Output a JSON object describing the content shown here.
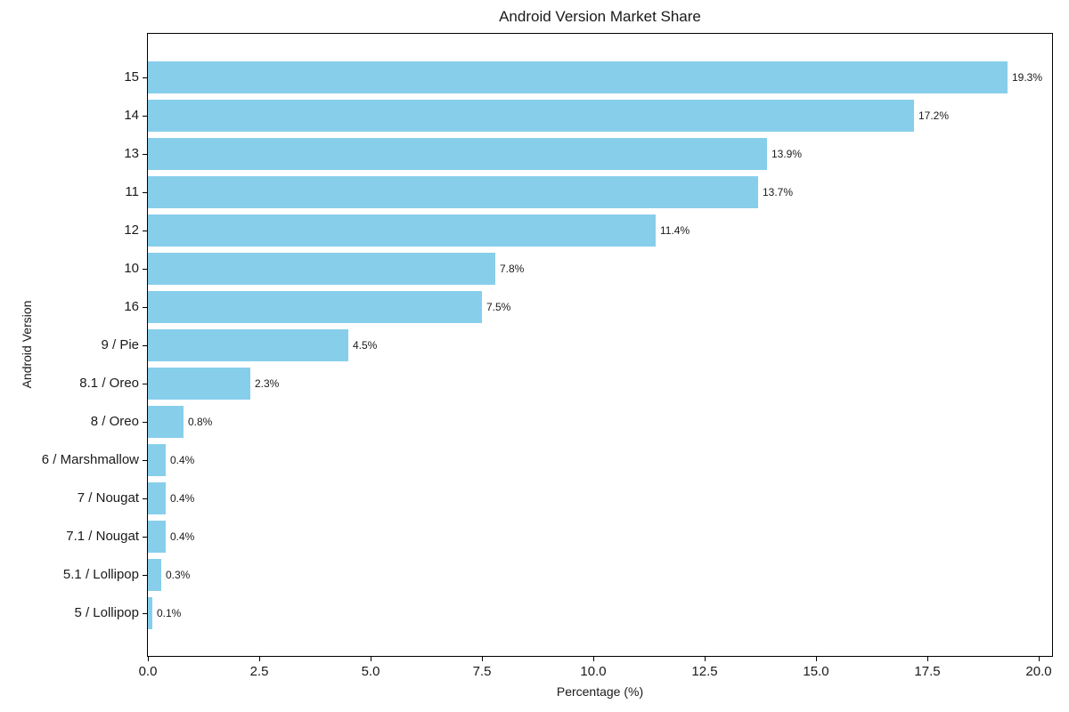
{
  "colors": {
    "bar": "#87CEEB",
    "spine": "#000000",
    "text": "#1a1a1a",
    "background": "#ffffff"
  },
  "chart_data": {
    "type": "bar",
    "orientation": "horizontal",
    "title": "Android Version Market Share",
    "xlabel": "Percentage (%)",
    "ylabel": "Android Version",
    "categories": [
      "15",
      "14",
      "13",
      "11",
      "12",
      "10",
      "16",
      "9 / Pie",
      "8.1 / Oreo",
      "8 / Oreo",
      "6 / Marshmallow",
      "7 / Nougat",
      "7.1 / Nougat",
      "5.1 / Lollipop",
      "5 / Lollipop"
    ],
    "values": [
      19.3,
      17.2,
      13.9,
      13.7,
      11.4,
      7.8,
      7.5,
      4.5,
      2.3,
      0.8,
      0.4,
      0.4,
      0.4,
      0.3,
      0.1
    ],
    "value_labels": [
      "19.3%",
      "17.2%",
      "13.9%",
      "13.7%",
      "11.4%",
      "7.8%",
      "7.5%",
      "4.5%",
      "2.3%",
      "0.8%",
      "0.4%",
      "0.4%",
      "0.4%",
      "0.3%",
      "0.1%"
    ],
    "xlim": [
      0,
      20.3
    ],
    "x_ticks": [
      0,
      2.5,
      5,
      7.5,
      10,
      12.5,
      15,
      17.5,
      20
    ],
    "x_tick_labels": [
      "0.0",
      "2.5",
      "5.0",
      "7.5",
      "10.0",
      "12.5",
      "15.0",
      "17.5",
      "20.0"
    ],
    "grid": false,
    "legend": null,
    "bar_color": "#87CEEB"
  }
}
